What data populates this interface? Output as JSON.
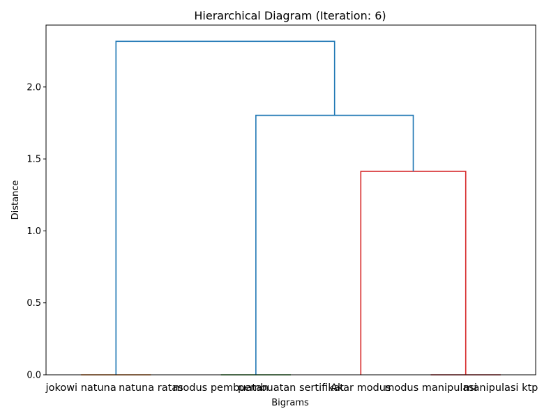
{
  "chart_data": {
    "type": "dendrogram",
    "title": "Hierarchical Diagram (Iteration: 6)",
    "xlabel": "Bigrams",
    "ylabel": "Distance",
    "ylim": [
      0,
      2.43
    ],
    "yticks": [
      "0.0",
      "0.5",
      "1.0",
      "1.5",
      "2.0"
    ],
    "ytick_values": [
      0,
      0.5,
      1.0,
      1.5,
      2.0
    ],
    "leaves": [
      "jokowi natuna",
      "natuna ratas",
      "modus pembuatan",
      "pembuatan sertifikat",
      "Akar modus",
      "modus manipulasi",
      "manipulasi ktp"
    ],
    "links": [
      {
        "left": 0,
        "right": 1,
        "height": 0.0,
        "color": "#ff7f0e"
      },
      {
        "left": 2,
        "right": 3,
        "height": 0.0,
        "color": "#2ca02c"
      },
      {
        "left": 5,
        "right": 6,
        "height": 0.0,
        "color": "#d62728"
      },
      {
        "left": 4,
        "right": "5-6",
        "height": 1.414,
        "color": "#d62728"
      },
      {
        "left": "2-3",
        "right": "4-5-6",
        "height": 1.803,
        "color": "#1f77b4"
      },
      {
        "left": "0-1",
        "right": "2-3-4-5-6",
        "height": 2.317,
        "color": "#1f77b4"
      }
    ]
  }
}
